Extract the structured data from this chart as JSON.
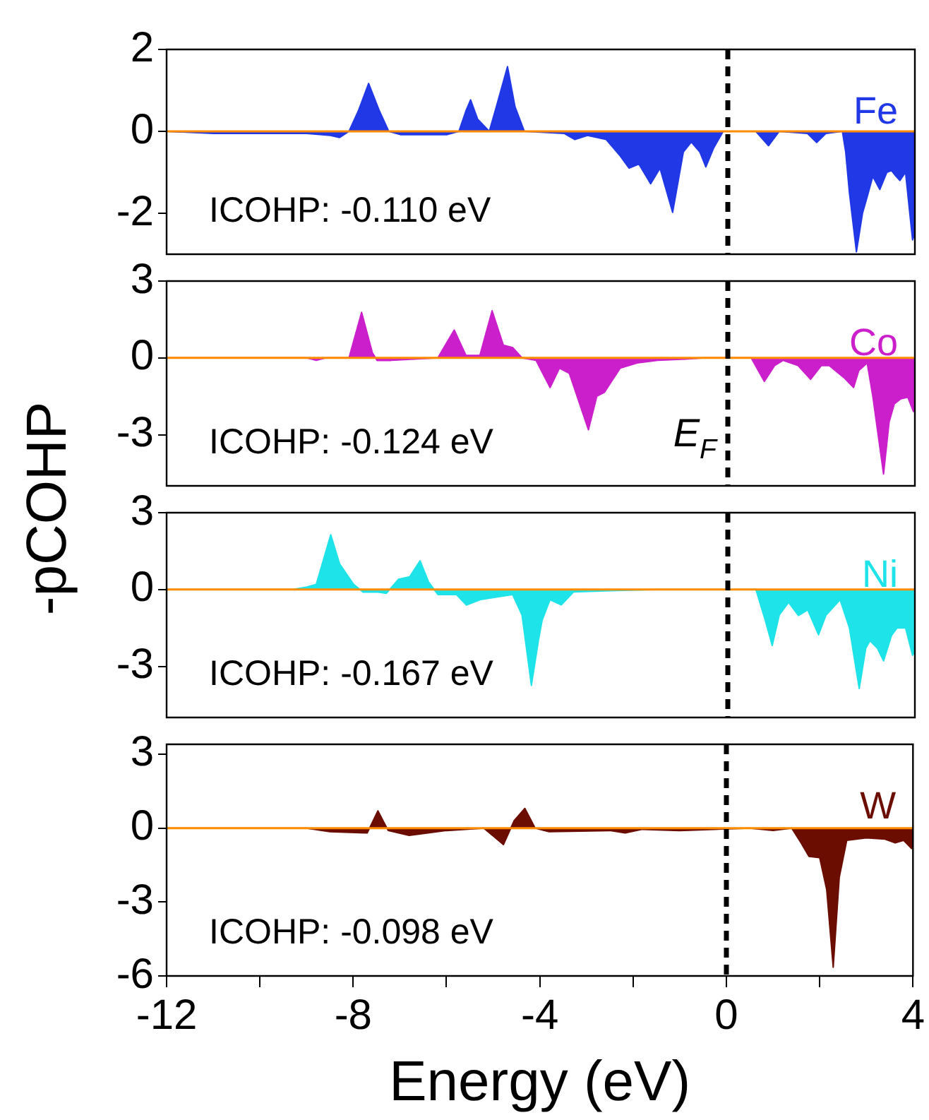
{
  "chart_data": [
    {
      "type": "area",
      "ylabel": "-pCOHP",
      "xlim": [
        -12,
        4
      ],
      "xticks": [
        -12,
        -8,
        -4,
        0,
        4
      ],
      "ylim": [
        -3,
        2
      ],
      "yticks": [
        2,
        0,
        -2
      ],
      "tick_labels": "y",
      "annotations": [
        "ICOHP: -0.110 eV"
      ],
      "ref_lines": [
        {
          "axis": "y",
          "value": 0,
          "color": "#ff8c00"
        },
        {
          "axis": "x",
          "value": 0,
          "color": "#000000",
          "line_style": "dashed"
        }
      ],
      "series": [
        {
          "name": "Fe",
          "color": "#2138e6",
          "x": [
            -12,
            -11,
            -9,
            -8.5,
            -8.3,
            -8.1,
            -7.9,
            -7.68,
            -7.45,
            -7.25,
            -7,
            -6,
            -5.75,
            -5.6,
            -5.5,
            -5.35,
            -5.1,
            -4.95,
            -4.71,
            -4.55,
            -4.35,
            -3.5,
            -3.27,
            -3,
            -2.6,
            -2.3,
            -2.11,
            -1.9,
            -1.65,
            -1.45,
            -1.18,
            -0.95,
            -0.78,
            -0.6,
            -0.47,
            -0.3,
            -0.1,
            0.6,
            0.87,
            1.1,
            1.7,
            1.9,
            2.1,
            2.45,
            2.52,
            2.6,
            2.75,
            2.88,
            2.98,
            3.1,
            3.25,
            3.4,
            3.5,
            3.6,
            3.68,
            3.8,
            3.95,
            4
          ],
          "values": [
            0,
            -0.05,
            -0.05,
            -0.1,
            -0.15,
            0,
            0.5,
            1.17,
            0.5,
            0,
            -0.08,
            -0.08,
            0,
            0.5,
            0.77,
            0.3,
            0,
            0.6,
            1.58,
            0.6,
            0,
            -0.05,
            -0.2,
            -0.1,
            -0.2,
            -0.6,
            -0.9,
            -0.8,
            -1.28,
            -0.9,
            -1.98,
            -0.5,
            -0.26,
            -0.5,
            -0.87,
            -0.4,
            0,
            0,
            -0.35,
            0,
            -0.05,
            -0.27,
            -0.05,
            0,
            -0.5,
            -1.5,
            -2.94,
            -2.0,
            -1.6,
            -1.1,
            -1.42,
            -1.0,
            -0.96,
            -1.1,
            -1.2,
            -1.0,
            -2.65,
            -2.5
          ]
        }
      ]
    },
    {
      "type": "area",
      "xlim": [
        -12,
        4
      ],
      "xticks": [
        -12,
        -8,
        -4,
        0,
        4
      ],
      "ylim": [
        -5,
        3
      ],
      "yticks": [
        3,
        0,
        -3
      ],
      "tick_labels": "y",
      "annotations": [
        "ICOHP: -0.124 eV"
      ],
      "ref_lines": [
        {
          "axis": "y",
          "value": 0,
          "color": "#ff8c00"
        },
        {
          "axis": "x",
          "value": 0,
          "label": "E$_{F}$",
          "color": "#000000",
          "line_style": "dashed"
        }
      ],
      "series": [
        {
          "name": "Co",
          "color": "#cc1fcc",
          "x": [
            -12,
            -9,
            -8.8,
            -8.6,
            -8.1,
            -7.83,
            -7.6,
            -7.5,
            -7.2,
            -6.2,
            -5.85,
            -5.6,
            -5.3,
            -5.04,
            -4.8,
            -4.6,
            -4.4,
            -4.1,
            -3.8,
            -3.6,
            -3.39,
            -2.98,
            -2.8,
            -2.64,
            -2.3,
            -1.94,
            -1.5,
            -0.9,
            -0.5,
            0.5,
            0.78,
            1,
            1.18,
            1.5,
            1.77,
            2,
            2.17,
            2.5,
            2.69,
            2.8,
            2.98,
            3.1,
            3.33,
            3.45,
            3.56,
            3.7,
            3.85,
            3.97,
            4
          ],
          "values": [
            0,
            0,
            -0.1,
            0,
            0,
            1.78,
            0.2,
            -0.1,
            -0.1,
            0,
            1.09,
            0.1,
            0.1,
            1.84,
            0.5,
            0.4,
            0,
            -0.1,
            -1.16,
            -0.4,
            -0.6,
            -2.81,
            -1.5,
            -1.35,
            -0.4,
            -0.2,
            -0.1,
            -0.05,
            0,
            0,
            -0.92,
            -0.3,
            -0.1,
            -0.3,
            -0.84,
            -0.3,
            -0.3,
            -0.8,
            -1.16,
            -0.5,
            -0.2,
            -1.5,
            -4.54,
            -2.5,
            -1.8,
            -1.6,
            -1.54,
            -2.1,
            -2.0
          ]
        }
      ]
    },
    {
      "type": "area",
      "xlim": [
        -12,
        4
      ],
      "xticks": [
        -12,
        -8,
        -4,
        0,
        4
      ],
      "ylim": [
        -5,
        3
      ],
      "yticks": [
        3,
        0,
        -3
      ],
      "tick_labels": "y",
      "annotations": [
        "ICOHP: -0.167 eV"
      ],
      "ref_lines": [
        {
          "axis": "y",
          "value": 0,
          "color": "#ff8c00"
        },
        {
          "axis": "x",
          "value": 0,
          "color": "#000000",
          "line_style": "dashed"
        }
      ],
      "series": [
        {
          "name": "Ni",
          "color": "#1ee3e8",
          "x": [
            -12,
            -9.3,
            -9,
            -8.8,
            -8.49,
            -8.3,
            -8,
            -7.8,
            -7.5,
            -7.3,
            -7.04,
            -6.8,
            -6.58,
            -6.4,
            -6.2,
            -5.8,
            -5.59,
            -5.3,
            -4.95,
            -4.6,
            -4.4,
            -4.2,
            -4.05,
            -3.97,
            -3.8,
            -3.56,
            -3.3,
            -2.5,
            -1.5,
            -0.5,
            0.6,
            0.8,
            0.95,
            1.1,
            1.3,
            1.51,
            1.71,
            1.94,
            2.1,
            2.4,
            2.6,
            2.81,
            2.95,
            3.04,
            3.2,
            3.33,
            3.5,
            3.62,
            3.8,
            3.95,
            4
          ],
          "values": [
            0,
            0,
            0.1,
            0.2,
            2.14,
            1.0,
            0.2,
            -0.1,
            -0.1,
            -0.15,
            0.4,
            0.5,
            1.12,
            0.3,
            -0.2,
            -0.2,
            -0.61,
            -0.4,
            -0.3,
            -0.2,
            -1.0,
            -3.75,
            -2.0,
            -1.2,
            -0.4,
            -0.6,
            -0.1,
            -0.05,
            0,
            0,
            0,
            -1.2,
            -2.19,
            -1.0,
            -0.5,
            -1.02,
            -0.8,
            -1.77,
            -1.0,
            -0.4,
            -1.5,
            -3.87,
            -2.3,
            -2.0,
            -2.3,
            -2.79,
            -1.8,
            -1.5,
            -1.5,
            -2.57,
            -2.4
          ]
        }
      ]
    },
    {
      "type": "area",
      "xlabel": "Energy (eV)",
      "xlim": [
        -12,
        4
      ],
      "xticks": [
        -12,
        {
          "value": -10,
          "label": null
        },
        -8,
        {
          "value": -6,
          "label": null
        },
        -4,
        {
          "value": -2,
          "label": null
        },
        0,
        {
          "value": 2,
          "label": null
        },
        4
      ],
      "ylim": [
        -6,
        3.4
      ],
      "yticks": [
        3,
        0,
        -3,
        -6
      ],
      "annotations": [
        "ICOHP: -0.098 eV"
      ],
      "ref_lines": [
        {
          "axis": "y",
          "value": 0,
          "color": "#ff8c00"
        },
        {
          "axis": "x",
          "value": 0,
          "color": "#000000",
          "line_style": "dashed"
        }
      ],
      "series": [
        {
          "name": "W",
          "color": "#6b0d00",
          "x": [
            -12,
            -9,
            -8.5,
            -7.7,
            -7.47,
            -7.25,
            -6.8,
            -6,
            -5.2,
            -4.95,
            -4.78,
            -4.55,
            -4.32,
            -4.1,
            -3.8,
            -2.5,
            -2.17,
            -1.8,
            -1,
            0.5,
            1,
            1.4,
            1.6,
            1.77,
            2,
            2.15,
            2.29,
            2.42,
            2.58,
            3,
            3.4,
            3.62,
            3.8,
            3.97,
            4
          ],
          "values": [
            0,
            0,
            -0.15,
            -0.2,
            0.7,
            -0.1,
            -0.3,
            -0.1,
            0,
            -0.4,
            -0.67,
            0.3,
            0.8,
            0,
            -0.15,
            -0.1,
            -0.2,
            -0.05,
            -0.1,
            0,
            -0.1,
            0,
            -0.6,
            -1.15,
            -1.2,
            -2.5,
            -5.65,
            -2.0,
            -0.5,
            -0.4,
            -0.45,
            -0.6,
            -0.5,
            -0.83,
            -0.8
          ]
        }
      ]
    }
  ]
}
